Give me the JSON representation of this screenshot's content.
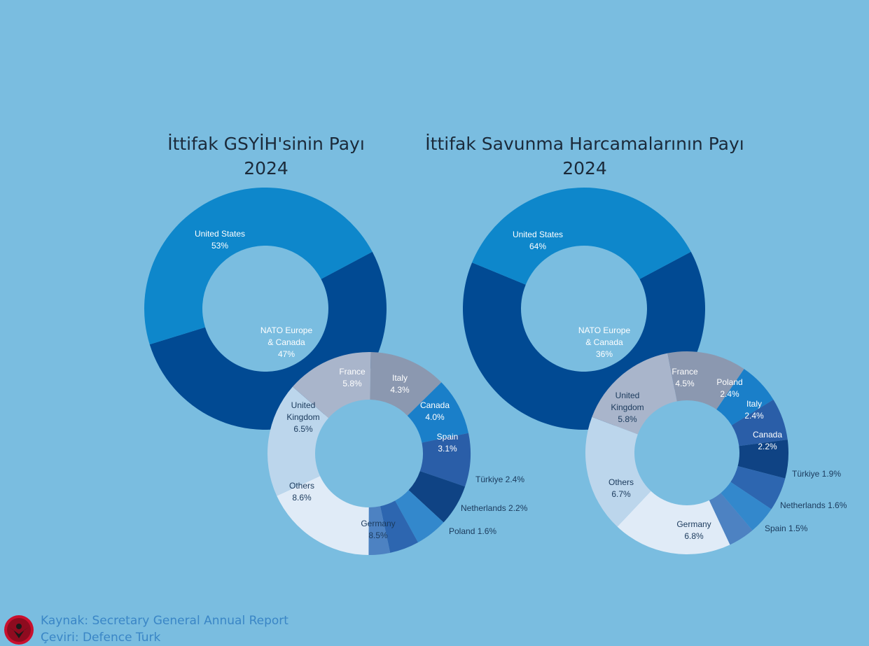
{
  "titles": {
    "gdp_line1": "İttifak GSYİH'sinin Payı",
    "gdp_line2": "2024",
    "def_line1": "İttifak Savunma Harcamalarının Payı",
    "def_line2": "2024"
  },
  "footer": {
    "source": "Kaynak: Secretary General Annual Report",
    "translation": "Çeviri: Defence Turk"
  },
  "chart_data": [
    {
      "type": "pie",
      "title": "İttifak GSYİH'sinin Payı 2024",
      "outer": {
        "slices": [
          {
            "name": "United States",
            "value": 53,
            "label": "53%",
            "color": "#014a93"
          },
          {
            "name": "NATO Europe & Canada",
            "value": 47,
            "label": "47%",
            "color": "#0e87cb"
          }
        ]
      },
      "inner": {
        "slices": [
          {
            "name": "France",
            "value": 5.8,
            "label": "5.8%",
            "color": "#8b98b0"
          },
          {
            "name": "Italy",
            "value": 4.3,
            "label": "4.3%",
            "color": "#1a7fc9"
          },
          {
            "name": "Canada",
            "value": 4.0,
            "label": "4.0%",
            "color": "#2a5ea8"
          },
          {
            "name": "Spain",
            "value": 3.1,
            "label": "3.1%",
            "color": "#0f4384"
          },
          {
            "name": "Türkiye",
            "value": 2.4,
            "label": "2.4%",
            "color": "#3388cc"
          },
          {
            "name": "Netherlands",
            "value": 2.2,
            "label": "2.2%",
            "color": "#2d66b0"
          },
          {
            "name": "Poland",
            "value": 1.6,
            "label": "1.6%",
            "color": "#4d82c2"
          },
          {
            "name": "Germany",
            "value": 8.5,
            "label": "8.5%",
            "color": "#e0ebf7"
          },
          {
            "name": "Others",
            "value": 8.6,
            "label": "8.6%",
            "color": "#bcd6ec"
          },
          {
            "name": "United Kingdom",
            "value": 6.5,
            "label": "6.5%",
            "color": "#a9b5cb"
          }
        ]
      }
    },
    {
      "type": "pie",
      "title": "İttifak Savunma Harcamalarının Payı 2024",
      "outer": {
        "slices": [
          {
            "name": "United States",
            "value": 64,
            "label": "64%",
            "color": "#014a93"
          },
          {
            "name": "NATO Europe & Canada",
            "value": 36,
            "label": "36%",
            "color": "#0e87cb"
          }
        ]
      },
      "inner": {
        "slices": [
          {
            "name": "France",
            "value": 4.5,
            "label": "4.5%",
            "color": "#8b98b0"
          },
          {
            "name": "Poland",
            "value": 2.4,
            "label": "2.4%",
            "color": "#1a7fc9"
          },
          {
            "name": "Italy",
            "value": 2.4,
            "label": "2.4%",
            "color": "#2a5ea8"
          },
          {
            "name": "Canada",
            "value": 2.2,
            "label": "2.2%",
            "color": "#0f4384"
          },
          {
            "name": "Türkiye",
            "value": 1.9,
            "label": "1.9%",
            "color": "#2d66b0"
          },
          {
            "name": "Netherlands",
            "value": 1.6,
            "label": "1.6%",
            "color": "#3388cc"
          },
          {
            "name": "Spain",
            "value": 1.5,
            "label": "1.5%",
            "color": "#4d82c2"
          },
          {
            "name": "Germany",
            "value": 6.8,
            "label": "6.8%",
            "color": "#e0ebf7"
          },
          {
            "name": "Others",
            "value": 6.7,
            "label": "6.7%",
            "color": "#bcd6ec"
          },
          {
            "name": "United Kingdom",
            "value": 5.8,
            "label": "5.8%",
            "color": "#a9b5cb"
          }
        ]
      }
    }
  ]
}
